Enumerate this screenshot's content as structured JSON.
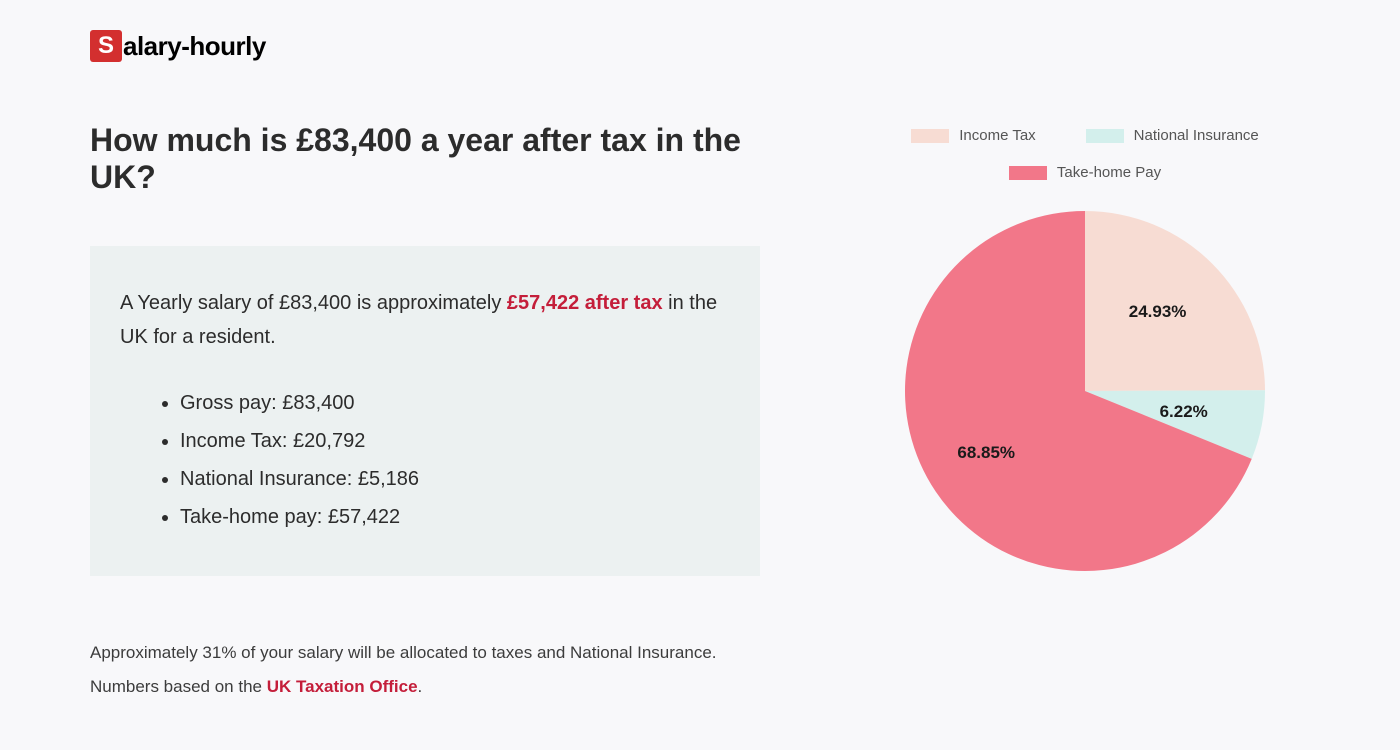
{
  "logo": {
    "badge": "S",
    "text": "alary-hourly"
  },
  "heading": "How much is £83,400 a year after tax in the UK?",
  "summary": {
    "prefix": "A Yearly salary of £83,400 is approximately ",
    "highlight": "£57,422 after tax",
    "suffix": " in the UK for a resident."
  },
  "breakdown": [
    "Gross pay: £83,400",
    "Income Tax: £20,792",
    "National Insurance: £5,186",
    "Take-home pay: £57,422"
  ],
  "footer": {
    "line1": "Approximately 31% of your salary will be allocated to taxes and National Insurance.",
    "line2_prefix": "Numbers based on the ",
    "link": "UK Taxation Office",
    "line2_suffix": "."
  },
  "chart": {
    "type": "pie",
    "slices": [
      {
        "label": "Income Tax",
        "value": 24.93,
        "color": "#f7dcd3",
        "display": "24.93%"
      },
      {
        "label": "National Insurance",
        "value": 6.22,
        "color": "#d3efec",
        "display": "6.22%"
      },
      {
        "label": "Take-home Pay",
        "value": 68.85,
        "color": "#f27789",
        "display": "68.85%"
      }
    ],
    "radius": 180,
    "label_fontsize": 17,
    "label_color": "#1a1a1a",
    "legend_swatch_width": 38,
    "legend_swatch_height": 14,
    "legend_fontsize": 15,
    "legend_color": "#555555"
  }
}
